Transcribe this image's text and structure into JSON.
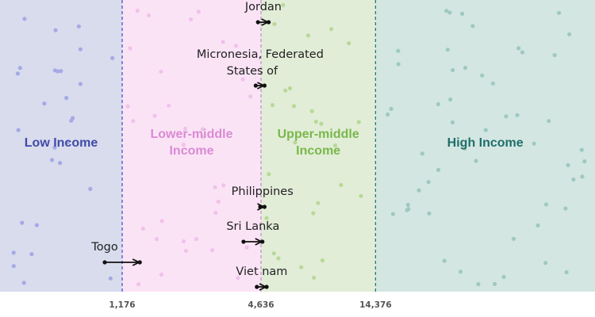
{
  "chart_data": {
    "type": "scatter",
    "x_scale": "log",
    "thresholds": [
      {
        "value": 1176,
        "label": "1,176",
        "color": "#4a56c4"
      },
      {
        "value": 4636,
        "label": "4,636",
        "color": "#c98fcf"
      },
      {
        "value": 14376,
        "label": "14,376",
        "color": "#2e7a74"
      }
    ],
    "bands": [
      {
        "name": "Low Income",
        "fill": "#d9dced",
        "label_color": "#3f4aa8",
        "dot_color": "#a5aae6"
      },
      {
        "name": "Lower-middle Income",
        "fill": "#fbe3f6",
        "label_color": "#d98bd3",
        "dot_color": "#f0c2ea"
      },
      {
        "name": "Upper-middle Income",
        "fill": "#e2edd8",
        "label_color": "#79b84a",
        "dot_color": "#b8d996"
      },
      {
        "name": "High Income",
        "fill": "#d4e6e2",
        "label_color": "#1f6f6a",
        "dot_color": "#9ec9c2"
      }
    ],
    "countries": [
      {
        "name": "Jordan",
        "from": 4500,
        "to": 5000
      },
      {
        "name": "Micronesia, Federated States of",
        "from": 4400,
        "to": 4800
      },
      {
        "name": "Philippines",
        "from": 4600,
        "to": 4800
      },
      {
        "name": "Sri Lanka",
        "from": 3900,
        "to": 4700
      },
      {
        "name": "Togo",
        "from": 990,
        "to": 1400
      },
      {
        "name": "Viet nam",
        "from": 4450,
        "to": 4900
      }
    ],
    "grid": false,
    "legend": "none"
  }
}
